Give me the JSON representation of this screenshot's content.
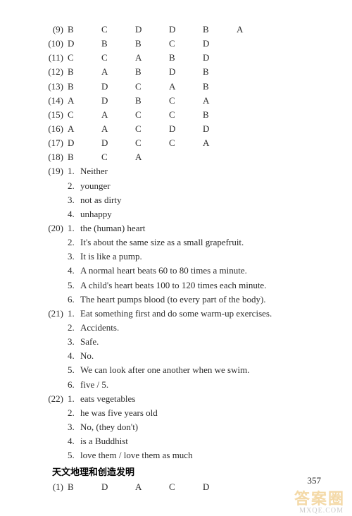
{
  "answerRows": [
    {
      "label": "(9)",
      "letters": [
        "B",
        "C",
        "D",
        "D",
        "B",
        "A"
      ]
    },
    {
      "label": "(10)",
      "letters": [
        "D",
        "B",
        "B",
        "C",
        "D"
      ]
    },
    {
      "label": "(11)",
      "letters": [
        "C",
        "C",
        "A",
        "B",
        "D"
      ]
    },
    {
      "label": "(12)",
      "letters": [
        "B",
        "A",
        "B",
        "D",
        "B"
      ]
    },
    {
      "label": "(13)",
      "letters": [
        "B",
        "D",
        "C",
        "A",
        "B"
      ]
    },
    {
      "label": "(14)",
      "letters": [
        "A",
        "D",
        "B",
        "C",
        "A"
      ]
    },
    {
      "label": "(15)",
      "letters": [
        "C",
        "A",
        "C",
        "C",
        "B"
      ]
    },
    {
      "label": "(16)",
      "letters": [
        "A",
        "A",
        "C",
        "D",
        "D"
      ]
    },
    {
      "label": "(17)",
      "letters": [
        "D",
        "D",
        "C",
        "C",
        "A"
      ]
    },
    {
      "label": "(18)",
      "letters": [
        "B",
        "C",
        "A"
      ]
    }
  ],
  "nestedGroups": [
    {
      "label": "(19)",
      "items": [
        {
          "n": "1.",
          "t": "Neither"
        },
        {
          "n": "2.",
          "t": "younger"
        },
        {
          "n": "3.",
          "t": "not as dirty"
        },
        {
          "n": "4.",
          "t": "unhappy"
        }
      ]
    },
    {
      "label": "(20)",
      "items": [
        {
          "n": "1.",
          "t": "the (human) heart"
        },
        {
          "n": "2.",
          "t": "It's about the same size as a small grapefruit."
        },
        {
          "n": "3.",
          "t": "It is like a pump."
        },
        {
          "n": "4.",
          "t": "A normal heart beats 60 to 80 times a minute."
        },
        {
          "n": "5.",
          "t": "A child's heart beats 100 to 120 times each minute."
        },
        {
          "n": "6.",
          "t": "The heart pumps blood (to every part of the body)."
        }
      ]
    },
    {
      "label": "(21)",
      "items": [
        {
          "n": "1.",
          "t": "Eat something first and do some warm-up exercises."
        },
        {
          "n": "2.",
          "t": "Accidents."
        },
        {
          "n": "3.",
          "t": "Safe."
        },
        {
          "n": "4.",
          "t": "No."
        },
        {
          "n": "5.",
          "t": "We can look after one another when we swim."
        },
        {
          "n": "6.",
          "t": "five / 5."
        }
      ]
    },
    {
      "label": "(22)",
      "items": [
        {
          "n": "1.",
          "t": "eats vegetables"
        },
        {
          "n": "2.",
          "t": "he was five years old"
        },
        {
          "n": "3.",
          "t": "No, (they don't)"
        },
        {
          "n": "4.",
          "t": "is a Buddhist"
        },
        {
          "n": "5.",
          "t": "love them / love them as much"
        }
      ]
    }
  ],
  "sectionHeading": "天文地理和创造发明",
  "tailRow": {
    "label": "(1)",
    "letters": [
      "B",
      "D",
      "A",
      "C",
      "D"
    ]
  },
  "pageNumber": "357",
  "watermark": "答案圈",
  "watermarkSub": "MXQE.COM"
}
